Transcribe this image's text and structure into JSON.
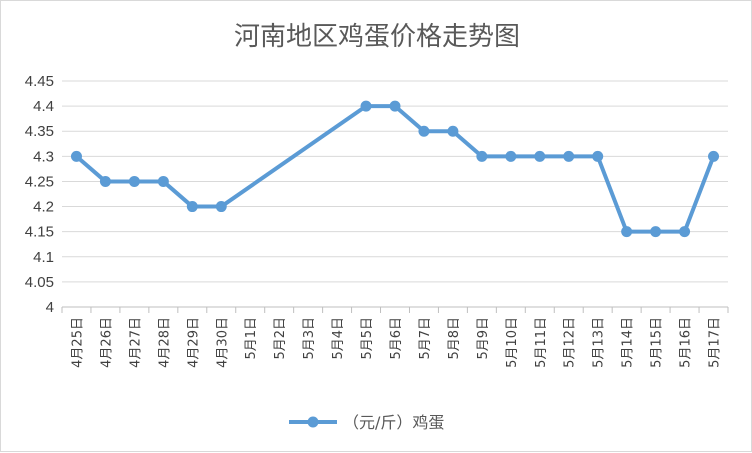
{
  "chart_data": {
    "type": "line",
    "title": "河南地区鸡蛋价格走势图",
    "xlabel": "",
    "ylabel": "",
    "ylim": [
      4,
      4.45
    ],
    "yticks": [
      "4",
      "4.05",
      "4.1",
      "4.15",
      "4.2",
      "4.25",
      "4.3",
      "4.35",
      "4.4",
      "4.45"
    ],
    "grid": true,
    "legend_position": "bottom",
    "categories": [
      "4月25日",
      "4月26日",
      "4月27日",
      "4月28日",
      "4月29日",
      "4月30日",
      "5月1日",
      "5月2日",
      "5月3日",
      "5月4日",
      "5月5日",
      "5月6日",
      "5月7日",
      "5月8日",
      "5月9日",
      "5月10日",
      "5月11日",
      "5月12日",
      "5月13日",
      "5月14日",
      "5月15日",
      "5月16日",
      "5月17日"
    ],
    "series": [
      {
        "name": "（元/斤）鸡蛋",
        "color": "#5b9bd5",
        "values": [
          4.3,
          4.25,
          4.25,
          4.25,
          4.2,
          4.2,
          null,
          null,
          null,
          null,
          4.4,
          4.4,
          4.35,
          4.35,
          4.3,
          4.3,
          4.3,
          4.3,
          4.3,
          4.15,
          4.15,
          4.15,
          4.3
        ]
      }
    ]
  }
}
